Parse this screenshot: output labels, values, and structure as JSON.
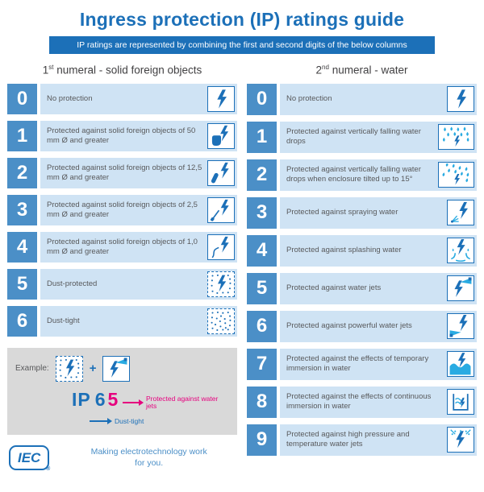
{
  "header": {
    "title": "Ingress protection (IP) ratings guide",
    "subtitle": "IP ratings are represented by combining the first and second digits of the below columns"
  },
  "columns": [
    {
      "id": "solids",
      "heading": {
        "num": "1",
        "sup": "st",
        "rest": " numeral - solid foreign objects"
      },
      "rows": [
        {
          "digit": "0",
          "text": "No protection",
          "icon": "bolt-icon"
        },
        {
          "digit": "1",
          "text": "Protected against solid foreign objects of 50 mm Ø and greater",
          "icon": "hand-bolt-icon"
        },
        {
          "digit": "2",
          "text": "Protected against solid foreign objects of 12,5 mm Ø and greater",
          "icon": "finger-bolt-icon"
        },
        {
          "digit": "3",
          "text": "Protected against solid foreign objects of 2,5 mm Ø and greater",
          "icon": "tool-bolt-icon"
        },
        {
          "digit": "4",
          "text": "Protected against solid foreign objects of 1,0 mm Ø and greater",
          "icon": "wire-bolt-icon"
        },
        {
          "digit": "5",
          "text": "Dust-protected",
          "icon": "dust-bolt-icon"
        },
        {
          "digit": "6",
          "text": "Dust-tight",
          "icon": "dust-icon"
        }
      ]
    },
    {
      "id": "water",
      "heading": {
        "num": "2",
        "sup": "nd",
        "rest": " numeral - water"
      },
      "rows": [
        {
          "digit": "0",
          "text": "No protection",
          "icon": "bolt-icon"
        },
        {
          "digit": "1",
          "text": "Protected against vertically falling water drops",
          "icon": "drops-icon"
        },
        {
          "digit": "2",
          "text": "Protected against vertically falling water drops when enclosure tilted up to 15°",
          "icon": "drops-tilted-icon"
        },
        {
          "digit": "3",
          "text": "Protected against spraying water",
          "icon": "spray-icon"
        },
        {
          "digit": "4",
          "text": "Protected against splashing water",
          "icon": "splash-icon"
        },
        {
          "digit": "5",
          "text": "Protected against water jets",
          "icon": "jet-icon"
        },
        {
          "digit": "6",
          "text": "Protected against powerful water jets",
          "icon": "powerful-jet-icon"
        },
        {
          "digit": "7",
          "text": "Protected against the effects of temporary immersion in water",
          "icon": "immersion-icon"
        },
        {
          "digit": "8",
          "text": "Protected against the effects of continuous immersion in water",
          "icon": "continuous-immersion-icon"
        },
        {
          "digit": "9",
          "text": "Protected against high pressure and temperature water jets",
          "icon": "high-pressure-icon"
        }
      ]
    }
  ],
  "example": {
    "label": "Example:",
    "plus": "+",
    "ip": "IP",
    "digit1": "6",
    "digit2": "5",
    "note_water": "Protected against water jets",
    "note_dust": "Dust-tight"
  },
  "footer": {
    "logo": "IEC",
    "reg": "®",
    "tagline1": "Making  electrotechnology work",
    "tagline2": "for you."
  },
  "colors": {
    "primary": "#1c70b8",
    "digit_bg": "#4b8fc7",
    "row_bg": "#cfe3f4",
    "cyan": "#29abe2",
    "magenta": "#e6007e"
  }
}
